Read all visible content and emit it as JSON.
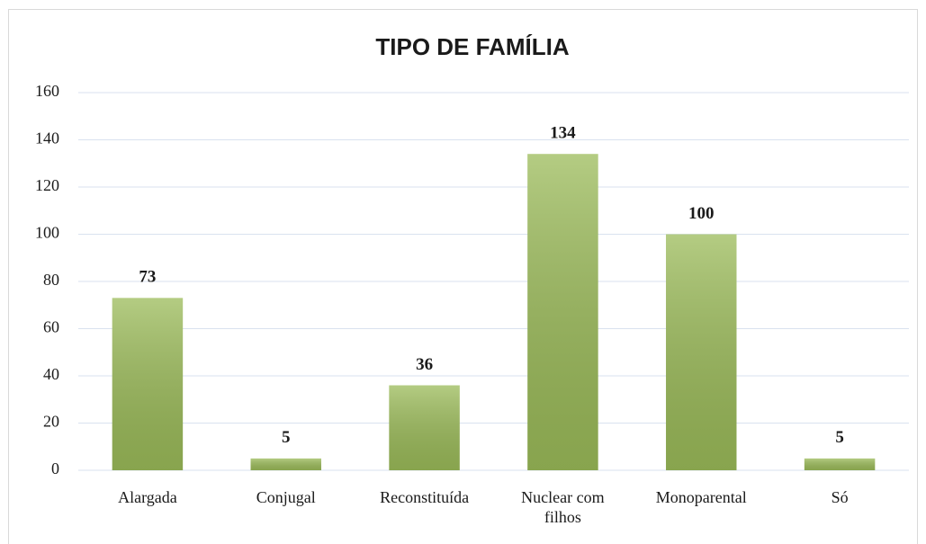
{
  "chart_data": {
    "type": "bar",
    "title": "TIPO DE FAMÍLIA",
    "categories": [
      "Alargada",
      "Conjugal",
      "Reconstituída",
      "Nuclear com filhos",
      "Monoparental",
      "Só"
    ],
    "values": [
      73,
      5,
      36,
      134,
      100,
      5
    ],
    "color": "#9bbb59",
    "ylim": [
      0,
      160
    ],
    "yticks": [
      0,
      20,
      40,
      60,
      80,
      100,
      120,
      140,
      160
    ],
    "grid": true
  }
}
